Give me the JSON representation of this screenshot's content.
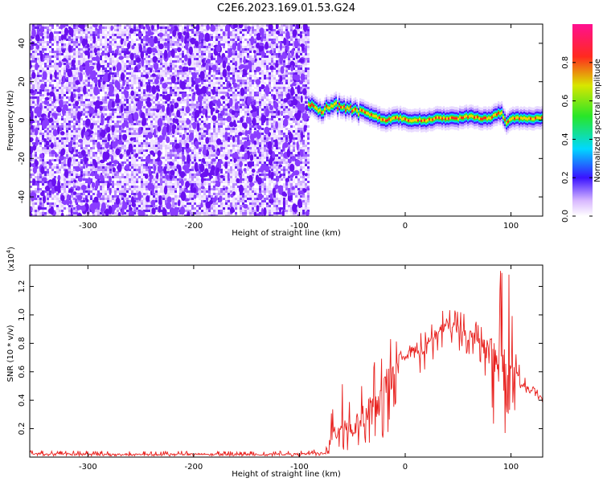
{
  "title": "C2E6.2023.169.01.53.G24",
  "chart_data": [
    {
      "type": "heatmap",
      "xlabel": "Height of straight line (km)",
      "ylabel": "Frequency (Hz)",
      "xlim": [
        -355,
        130
      ],
      "ylim": [
        -50,
        50
      ],
      "xticks": [
        -300,
        -200,
        -100,
        0,
        100
      ],
      "yticks": [
        -40,
        -20,
        0,
        20,
        40
      ],
      "noise_region_x": [
        -355,
        -92
      ],
      "signal_trace": {
        "x": [
          -92,
          -85,
          -80,
          -75,
          -70,
          -60,
          -50,
          -40,
          -30,
          -20,
          -10,
          -5,
          0,
          10,
          20,
          30,
          40,
          50,
          60,
          70,
          80,
          85,
          90,
          95,
          100,
          110,
          120,
          130
        ],
        "y": [
          9,
          6,
          5,
          6,
          8,
          7,
          5,
          4,
          2,
          0,
          1,
          1,
          0,
          0,
          0,
          1,
          1,
          1,
          2,
          1,
          1,
          3,
          4,
          -2,
          1,
          1,
          1,
          1
        ]
      },
      "colorbar": {
        "label": "Normalized spectral amplitude",
        "range": [
          0,
          1
        ],
        "ticks": [
          "0.0",
          "0.2",
          "0.4",
          "0.6",
          "0.8"
        ]
      }
    },
    {
      "type": "line",
      "xlabel": "Height of straight line (km)",
      "ylabel": "SNR (10 * v/v)",
      "yexponent": "(x10",
      "yexponent_power": "4",
      "yexponent_close": ")",
      "xlim": [
        -355,
        130
      ],
      "ylim": [
        0,
        13500
      ],
      "xticks": [
        -300,
        -200,
        -100,
        0,
        100
      ],
      "ytick_labels": [
        "0.2",
        "0.4",
        "0.6",
        "0.8",
        "1.0",
        "1.2"
      ],
      "ytick_values": [
        2000,
        4000,
        6000,
        8000,
        10000,
        12000
      ],
      "series": [
        {
          "color": "#e8211e",
          "x": [
            -355,
            -300,
            -250,
            -200,
            -150,
            -100,
            -75,
            -68,
            -60,
            -50,
            -40,
            -30,
            -20,
            -10,
            0,
            10,
            20,
            30,
            40,
            50,
            60,
            70,
            80,
            85,
            90,
            95,
            100,
            105,
            110,
            120,
            130
          ],
          "y": [
            250,
            200,
            180,
            200,
            180,
            200,
            300,
            1500,
            2500,
            1800,
            3000,
            3500,
            4500,
            6500,
            7000,
            7500,
            7700,
            8800,
            9300,
            8900,
            8600,
            8200,
            7600,
            6800,
            6200,
            5300,
            4800,
            5600,
            5000,
            4700,
            4100
          ],
          "envelope_max": [
            450,
            450,
            400,
            450,
            400,
            450,
            600,
            4500,
            5500,
            3600,
            6200,
            7400,
            8200,
            9000,
            6700,
            9300,
            9000,
            10200,
            10800,
            10400,
            9800,
            9400,
            9800,
            10500,
            13200,
            12400,
            13100,
            7500,
            6000,
            5000,
            4500
          ],
          "envelope_min": [
            100,
            80,
            80,
            80,
            80,
            80,
            100,
            300,
            500,
            300,
            1000,
            500,
            1200,
            2500,
            5400,
            5000,
            6000,
            7000,
            8000,
            7500,
            7200,
            6500,
            3500,
            1000,
            300,
            700,
            600,
            4200,
            4600,
            4400,
            3800
          ]
        }
      ]
    }
  ]
}
